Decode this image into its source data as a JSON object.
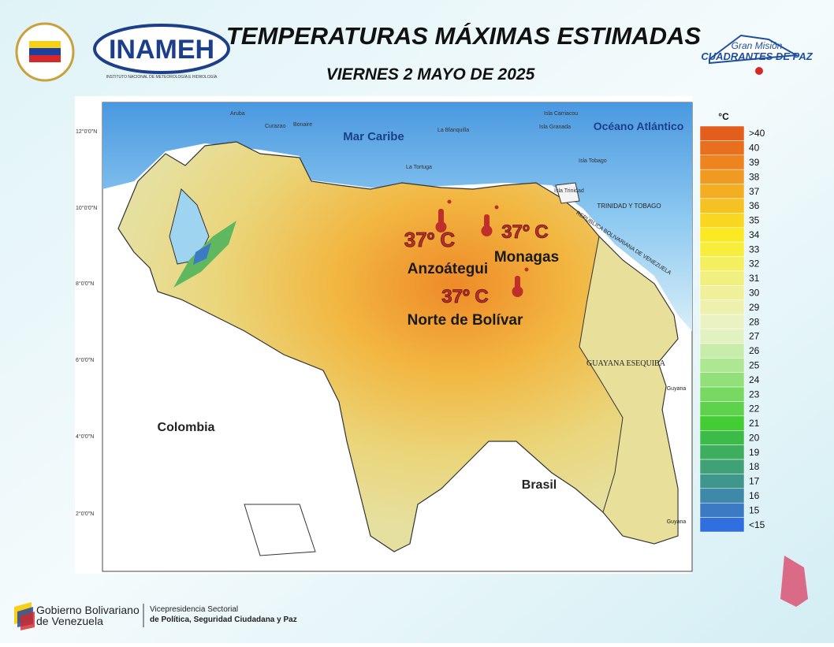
{
  "header": {
    "title": "TEMPERATURAS MÁXIMAS ESTIMADAS",
    "date": "VIERNES 2 MAYO DE 2025",
    "logo_left": "INAMEH",
    "logo_left_sub": "INSTITUTO NACIONAL DE METEOROLOGÍA E HIDROLOGÍA",
    "logo_right_top": "Gran Misión",
    "logo_right_main": "CUADRANTES DE PAZ"
  },
  "map": {
    "sea_labels": [
      "Mar Caribe",
      "Océano Atlántico"
    ],
    "country_labels": [
      "Colombia",
      "Brasil",
      "GUAYANA ESEQUIBA",
      "TRINIDAD Y TOBAGO",
      "REPÚBLICA BOLIVARIANA DE VENEZUELA",
      "Guyana",
      "Guyana"
    ],
    "island_labels": [
      "Aruba",
      "Curazao",
      "Bonaire",
      "La Tortuga",
      "La Blanquilla",
      "Isla Carriacou",
      "Isla Granada",
      "Isla Tobago",
      "Isla Trinidad"
    ],
    "latitude_labels": [
      "12°0'0\"N",
      "10°0'0\"N",
      "8°0'0\"N",
      "6°0'0\"N",
      "4°0'0\"N",
      "2°0'0\"N"
    ],
    "annotations": [
      {
        "temperature": "37º C",
        "region": "Anzoátegui"
      },
      {
        "temperature": "37º C",
        "region": "Monagas"
      },
      {
        "temperature": "37º C",
        "region": "Norte de Bolívar"
      }
    ]
  },
  "legend": {
    "unit": "°C",
    "items": [
      {
        "label": ">40",
        "color": "#e35d1c"
      },
      {
        "label": "40",
        "color": "#e86f1e"
      },
      {
        "label": "39",
        "color": "#ee8420"
      },
      {
        "label": "38",
        "color": "#f19a22"
      },
      {
        "label": "37",
        "color": "#f3ae23"
      },
      {
        "label": "36",
        "color": "#f5c224"
      },
      {
        "label": "35",
        "color": "#f8d622"
      },
      {
        "label": "34",
        "color": "#fbe924"
      },
      {
        "label": "33",
        "color": "#f6ee3a"
      },
      {
        "label": "32",
        "color": "#f3ef5e"
      },
      {
        "label": "31",
        "color": "#f1ef80"
      },
      {
        "label": "30",
        "color": "#f1f09a"
      },
      {
        "label": "29",
        "color": "#eef1ae"
      },
      {
        "label": "28",
        "color": "#ebf2c2"
      },
      {
        "label": "27",
        "color": "#e1f2c0"
      },
      {
        "label": "26",
        "color": "#c8ecaa"
      },
      {
        "label": "25",
        "color": "#aee792"
      },
      {
        "label": "24",
        "color": "#92e07a"
      },
      {
        "label": "23",
        "color": "#77d962"
      },
      {
        "label": "22",
        "color": "#5ed24a"
      },
      {
        "label": "21",
        "color": "#44cc34"
      },
      {
        "label": "20",
        "color": "#3cbb48"
      },
      {
        "label": "19",
        "color": "#3dae5e"
      },
      {
        "label": "18",
        "color": "#3ea276"
      },
      {
        "label": "17",
        "color": "#3e968c"
      },
      {
        "label": "16",
        "color": "#3e88a8"
      },
      {
        "label": "15",
        "color": "#3d7ac4"
      },
      {
        "label": "<15",
        "color": "#2f6fe0"
      }
    ]
  },
  "footer": {
    "left_main": "Gobierno Bolivariano",
    "left_sub": "de Venezuela",
    "right_line1": "Vicepresidencia Sectorial",
    "right_line2": "de Política, Seguridad Ciudadana y Paz"
  }
}
